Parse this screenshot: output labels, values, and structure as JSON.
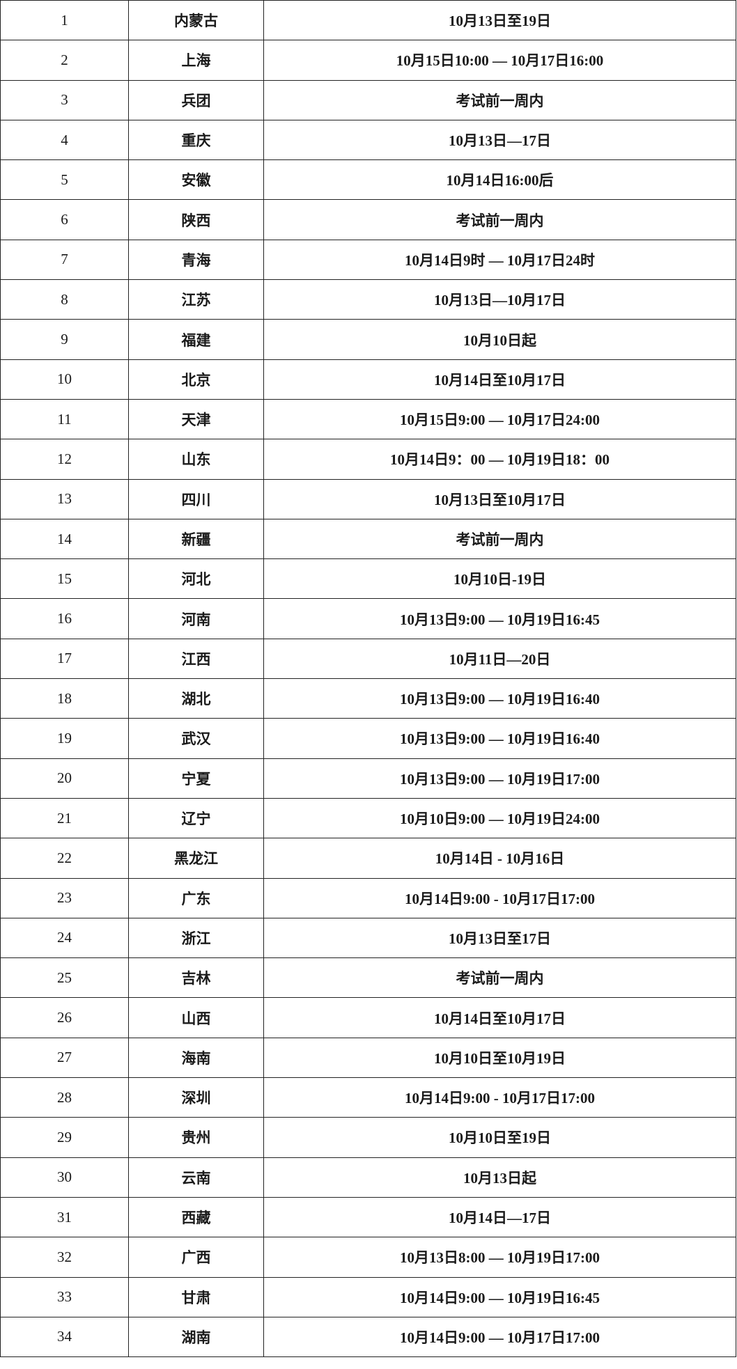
{
  "table": {
    "rows": [
      [
        "1",
        "内蒙古",
        "10月13日至19日"
      ],
      [
        "2",
        "上海",
        "10月15日10:00 — 10月17日16:00"
      ],
      [
        "3",
        "兵团",
        "考试前一周内"
      ],
      [
        "4",
        "重庆",
        "10月13日—17日"
      ],
      [
        "5",
        "安徽",
        "10月14日16:00后"
      ],
      [
        "6",
        "陕西",
        "考试前一周内"
      ],
      [
        "7",
        "青海",
        "10月14日9时 — 10月17日24时"
      ],
      [
        "8",
        "江苏",
        "10月13日—10月17日"
      ],
      [
        "9",
        "福建",
        "10月10日起"
      ],
      [
        "10",
        "北京",
        "10月14日至10月17日"
      ],
      [
        "11",
        "天津",
        "10月15日9:00 — 10月17日24:00"
      ],
      [
        "12",
        "山东",
        "10月14日9：00 — 10月19日18：00"
      ],
      [
        "13",
        "四川",
        "10月13日至10月17日"
      ],
      [
        "14",
        "新疆",
        "考试前一周内"
      ],
      [
        "15",
        "河北",
        "10月10日-19日"
      ],
      [
        "16",
        "河南",
        "10月13日9:00 — 10月19日16:45"
      ],
      [
        "17",
        "江西",
        "10月11日—20日"
      ],
      [
        "18",
        "湖北",
        "10月13日9:00 — 10月19日16:40"
      ],
      [
        "19",
        "武汉",
        "10月13日9:00 — 10月19日16:40"
      ],
      [
        "20",
        "宁夏",
        "10月13日9:00 — 10月19日17:00"
      ],
      [
        "21",
        "辽宁",
        "10月10日9:00 — 10月19日24:00"
      ],
      [
        "22",
        "黑龙江",
        "10月14日 - 10月16日"
      ],
      [
        "23",
        "广东",
        "10月14日9:00 - 10月17日17:00"
      ],
      [
        "24",
        "浙江",
        "10月13日至17日"
      ],
      [
        "25",
        "吉林",
        "考试前一周内"
      ],
      [
        "26",
        "山西",
        "10月14日至10月17日"
      ],
      [
        "27",
        "海南",
        "10月10日至10月19日"
      ],
      [
        "28",
        "深圳",
        "10月14日9:00 - 10月17日17:00"
      ],
      [
        "29",
        "贵州",
        "10月10日至19日"
      ],
      [
        "30",
        "云南",
        "10月13日起"
      ],
      [
        "31",
        "西藏",
        "10月14日—17日"
      ],
      [
        "32",
        "广西",
        "10月13日8:00 — 10月19日17:00"
      ],
      [
        "33",
        "甘肃",
        "10月14日9:00 — 10月19日16:45"
      ],
      [
        "34",
        "湖南",
        "10月14日9:00 — 10月17日17:00"
      ]
    ]
  }
}
